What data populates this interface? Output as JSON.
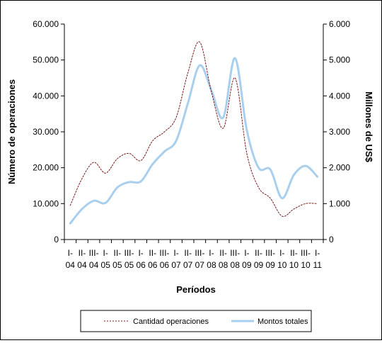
{
  "chart_data": {
    "type": "line",
    "xlabel": "Períodos",
    "ylabel_left": "Número de operaciones",
    "ylabel_right": "Millones de US$",
    "ylim_left": [
      0,
      60000
    ],
    "ylim_right": [
      0,
      6000
    ],
    "yticks_left": [
      "0",
      "10.000",
      "20.000",
      "30.000",
      "40.000",
      "50.000",
      "60.000"
    ],
    "yticks_right": [
      "0",
      "1.000",
      "2.000",
      "3.000",
      "4.000",
      "5.000",
      "6.000"
    ],
    "x_tick_labels": [
      [
        "I-",
        "04"
      ],
      [
        "II-",
        "04"
      ],
      [
        "III-",
        "04"
      ],
      [
        "I-",
        "05"
      ],
      [
        "II-",
        "05"
      ],
      [
        "III-",
        "05"
      ],
      [
        "I-",
        "06"
      ],
      [
        "II-",
        "06"
      ],
      [
        "III-",
        "06"
      ],
      [
        "I-",
        "07"
      ],
      [
        "II-",
        "07"
      ],
      [
        "III-",
        "07"
      ],
      [
        "I-",
        "08"
      ],
      [
        "II-",
        "08"
      ],
      [
        "III-",
        "08"
      ],
      [
        "I-",
        "09"
      ],
      [
        "II-",
        "09"
      ],
      [
        "III-",
        "09"
      ],
      [
        "I-",
        "10"
      ],
      [
        "II-",
        "10"
      ],
      [
        "III-",
        "10"
      ],
      [
        "I-",
        "11"
      ]
    ],
    "series": [
      {
        "name": "Cantidad operaciones",
        "axis": "left",
        "color": "#7b1a1a",
        "style": "dotted",
        "values": [
          9500,
          17000,
          21500,
          18500,
          22500,
          24000,
          22000,
          27500,
          30000,
          34000,
          46500,
          55000,
          41000,
          31000,
          45000,
          24000,
          14500,
          11500,
          6500,
          8500,
          10000,
          10000
        ]
      },
      {
        "name": "Montos totales",
        "axis": "right",
        "color": "#a9cfee",
        "style": "solid",
        "values": [
          450,
          850,
          1080,
          1020,
          1450,
          1600,
          1620,
          2100,
          2450,
          2750,
          3800,
          4850,
          4150,
          3400,
          5050,
          3050,
          2000,
          1950,
          1150,
          1800,
          2050,
          1750
        ]
      }
    ],
    "grid": false,
    "legend": "bottom"
  }
}
